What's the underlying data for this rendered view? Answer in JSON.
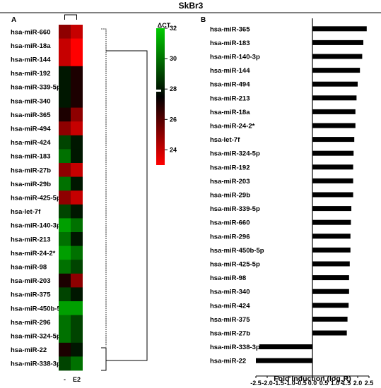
{
  "figure_title": "SkBr3",
  "chart_data": [
    {
      "type": "heatmap",
      "panel_label": "A",
      "rows": [
        "hsa-miR-660",
        "hsa-miR-18a",
        "hsa-miR-144",
        "hsa-miR-192",
        "hsa-miR-339-5p",
        "hsa-miR-340",
        "hsa-miR-365",
        "hsa-miR-494",
        "hsa-miR-424",
        "hsa-miR-183",
        "hsa-miR-27b",
        "hsa-miR-29b",
        "hsa-miR-425-5p",
        "hsa-let-7f",
        "hsa-miR-140-3p",
        "hsa-miR-213",
        "hsa-miR-24-2*",
        "hsa-miR-98",
        "hsa-miR-203",
        "hsa-miR-375",
        "hsa-miR-450b-5p",
        "hsa-miR-296",
        "hsa-miR-324-5p",
        "hsa-miR-22",
        "hsa-miR-338-3p"
      ],
      "columns": [
        "-",
        "E2"
      ],
      "values": [
        [
          25,
          24
        ],
        [
          24,
          23
        ],
        [
          24,
          23
        ],
        [
          28,
          27
        ],
        [
          28,
          27
        ],
        [
          28,
          27
        ],
        [
          27,
          25
        ],
        [
          25,
          24
        ],
        [
          29,
          28
        ],
        [
          30,
          28
        ],
        [
          25,
          24
        ],
        [
          30,
          28
        ],
        [
          25,
          24
        ],
        [
          29,
          28
        ],
        [
          31,
          30
        ],
        [
          30,
          28
        ],
        [
          31,
          30
        ],
        [
          30,
          29
        ],
        [
          27,
          25
        ],
        [
          29,
          28
        ],
        [
          31,
          31
        ],
        [
          30,
          29
        ],
        [
          30,
          29
        ],
        [
          27,
          28
        ],
        [
          29,
          30
        ]
      ],
      "colorbar": {
        "label": "ΔCT",
        "ticks": [
          32,
          30,
          28,
          26,
          24
        ],
        "range": [
          23,
          32
        ],
        "low_color": "#ff0000",
        "mid_color": "#000000",
        "high_color": "#00cc00"
      }
    },
    {
      "type": "bar",
      "orientation": "horizontal",
      "panel_label": "B",
      "title": "Fold Induction",
      "xlabel": "Fold Induction (log2R)",
      "categories": [
        "hsa-miR-365",
        "hsa-miR-183",
        "hsa-miR-140-3p",
        "hsa-miR-144",
        "hsa-miR-494",
        "hsa-miR-213",
        "hsa-miR-18a",
        "hsa-miR-24-2*",
        "hsa-let-7f",
        "hsa-miR-324-5p",
        "hsa-miR-192",
        "hsa-miR-203",
        "hsa-miR-29b",
        "hsa-miR-339-5p",
        "hsa-miR-660",
        "hsa-miR-296",
        "hsa-miR-450b-5p",
        "hsa-miR-425-5p",
        "hsa-miR-98",
        "hsa-miR-340",
        "hsa-miR-424",
        "hsa-miR-375",
        "hsa-miR-27b",
        "hsa-miR-338-3p",
        "hsa-miR-22"
      ],
      "values": [
        2.4,
        2.25,
        2.2,
        2.1,
        2.0,
        1.95,
        1.9,
        1.9,
        1.85,
        1.82,
        1.8,
        1.8,
        1.8,
        1.72,
        1.7,
        1.68,
        1.68,
        1.65,
        1.62,
        1.62,
        1.6,
        1.55,
        1.52,
        -2.35,
        -2.5
      ],
      "xlim": [
        -2.75,
        2.75
      ],
      "xticks": [
        -2.5,
        -2.0,
        -1.5,
        -1.0,
        -0.5,
        0.0,
        0.5,
        1.0,
        1.5,
        2.0,
        2.5
      ],
      "xtick_labels": [
        "-2.5",
        "-2.0",
        "-1.5",
        "-1.0",
        "-0.5",
        "0.0",
        "0.5",
        "1.0",
        "1.5",
        "2.0",
        "2.5"
      ],
      "bar_color": "#000000"
    }
  ]
}
